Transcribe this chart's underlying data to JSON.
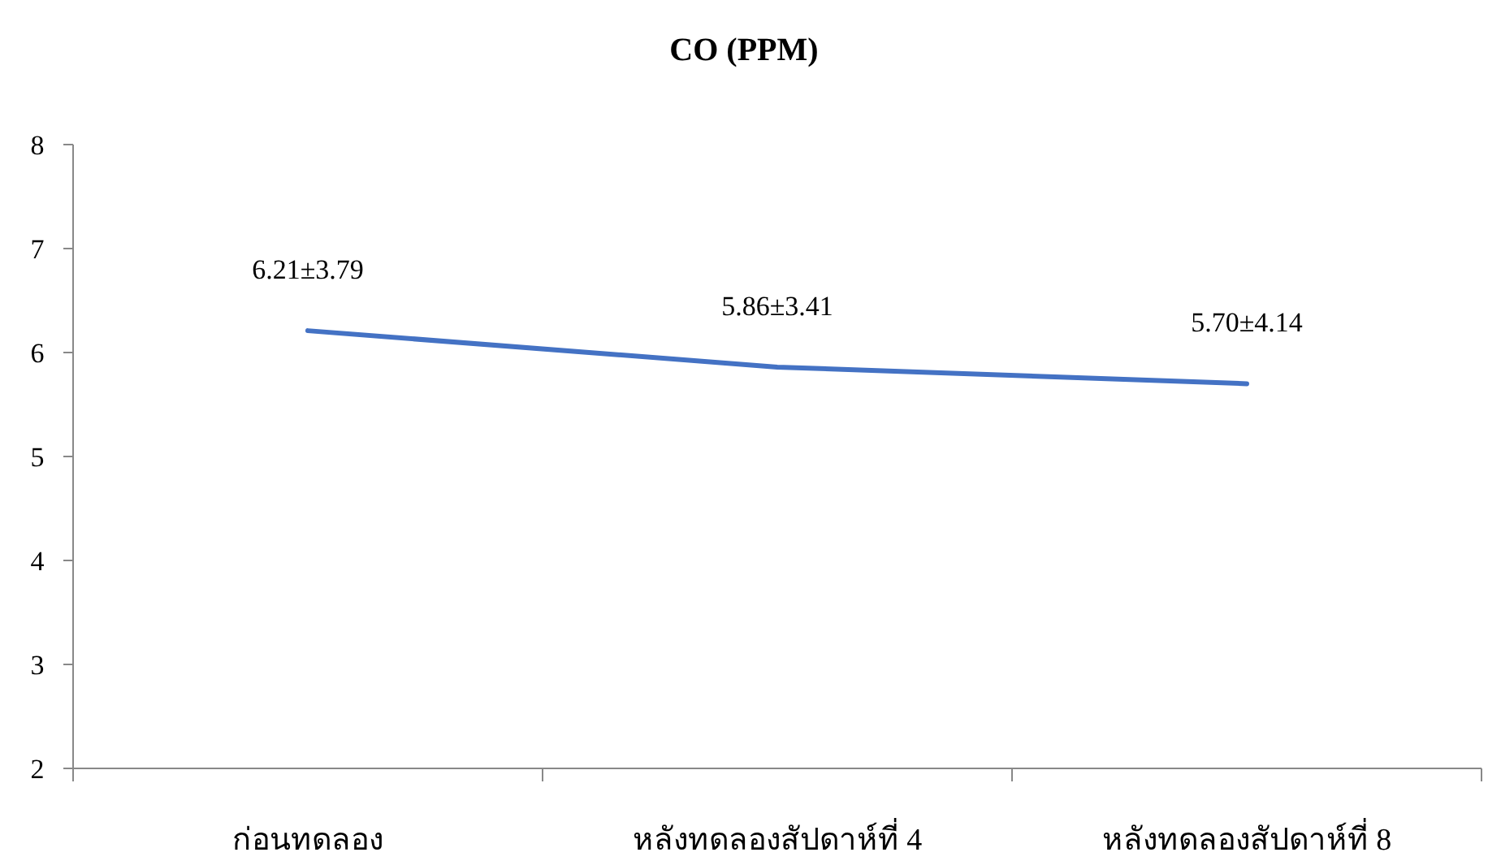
{
  "chart_data": {
    "type": "line",
    "title": "CO (PPM)",
    "categories": [
      "ก่อนทดลอง",
      "หลังทดลองสัปดาห์ที่ 4",
      "หลังทดลองสัปดาห์ที่ 8"
    ],
    "values": [
      6.21,
      5.86,
      5.7
    ],
    "value_labels": [
      "6.21±3.79",
      "5.86±3.41",
      "5.70±4.14"
    ],
    "color": "#4472c4",
    "ylim": [
      2,
      8
    ],
    "yticks": [
      2,
      3,
      4,
      5,
      6,
      7,
      8
    ]
  }
}
